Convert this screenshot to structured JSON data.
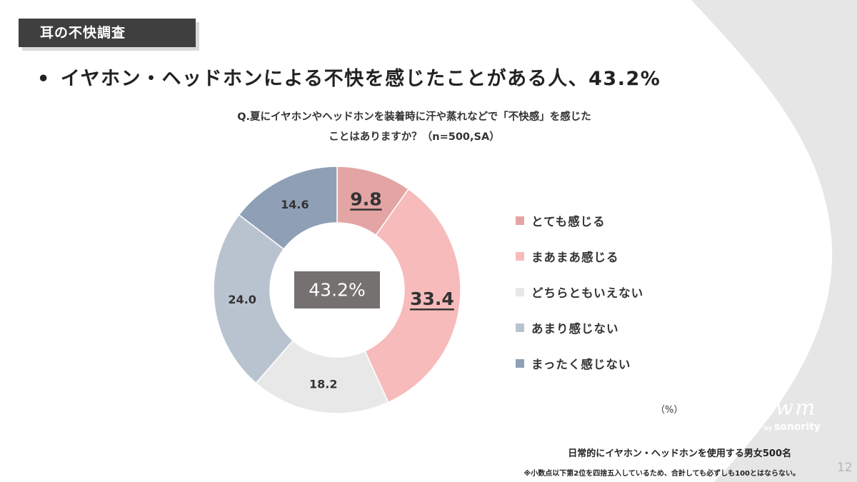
{
  "section_tag": "耳の不快調査",
  "headline": {
    "bullet": "•",
    "text": "イヤホン・ヘッドホンによる不快を感じたことがある人、43.2%"
  },
  "question": {
    "line1": "Q.夏にイヤホンやヘッドホンを装着時に汗や蒸れなどで「不快感」を感じた",
    "line2": "ことはありますか？（n=500,SA）"
  },
  "center_label": "43.2%",
  "unit_label": "（%）",
  "footer": {
    "sample": "日常的にイヤホン・ヘッドホンを使用する男女500名",
    "note": "※小数点以下第2位を四捨五入しているため、合計しても必ずしも100とはならない。"
  },
  "page_number": "12",
  "logo": {
    "main": "nwm",
    "by": "by",
    "sub": "sonority"
  },
  "colors": {
    "background_shape": "#e6e6e6",
    "tag_bg": "#3f3f3f",
    "center_box": "#767171"
  },
  "chart_data": {
    "type": "pie",
    "donut": true,
    "categories": [
      "とても感じる",
      "まあまあ感じる",
      "どちらともいえない",
      "あまり感じない",
      "まったく感じない"
    ],
    "values": [
      9.8,
      33.4,
      18.2,
      24.0,
      14.6
    ],
    "value_labels": [
      "9.8",
      "33.4",
      "18.2",
      "24.0",
      "14.6"
    ],
    "colors": [
      "#e3a5a3",
      "#f7bbbb",
      "#e8e8e8",
      "#b9c3d0",
      "#8fa0b6"
    ],
    "highlighted": [
      true,
      true,
      false,
      false,
      false
    ],
    "legend_position": "right"
  }
}
